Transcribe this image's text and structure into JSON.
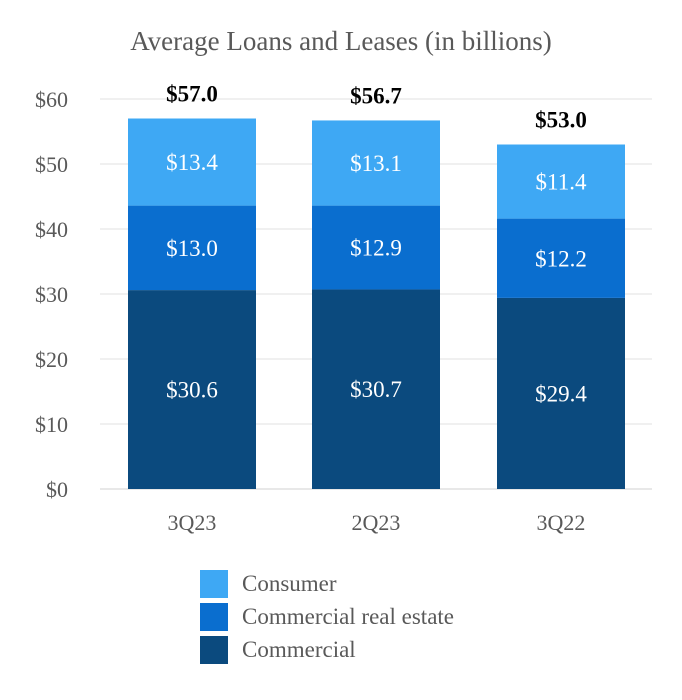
{
  "chart_data": {
    "type": "bar",
    "stacked": true,
    "title": "Average Loans and Leases (in billions)",
    "categories": [
      "3Q23",
      "2Q23",
      "3Q22"
    ],
    "series": [
      {
        "name": "Commercial",
        "values": [
          30.6,
          30.7,
          29.4
        ],
        "labels": [
          "$30.6",
          "$30.7",
          "$29.4"
        ],
        "color": "#0b4a7e"
      },
      {
        "name": "Commercial real estate",
        "values": [
          13.0,
          12.9,
          12.2
        ],
        "labels": [
          "$13.0",
          "$12.9",
          "$12.2"
        ],
        "color": "#0a6ecf"
      },
      {
        "name": "Consumer",
        "values": [
          13.4,
          13.1,
          11.4
        ],
        "labels": [
          "$13.4",
          "$13.1",
          "$11.4"
        ],
        "color": "#3ea8f4"
      }
    ],
    "totals": [
      "$57.0",
      "$56.7",
      "$53.0"
    ],
    "ylim": [
      0,
      60
    ],
    "yticks": [
      0,
      10,
      20,
      30,
      40,
      50,
      60
    ],
    "ytick_labels": [
      "$0",
      "$10",
      "$20",
      "$30",
      "$40",
      "$50",
      "$60"
    ],
    "grid": true,
    "xlabel": "",
    "ylabel": "",
    "legend": {
      "position": "bottom",
      "entries": [
        "Consumer",
        "Commercial real estate",
        "Commercial"
      ]
    }
  }
}
